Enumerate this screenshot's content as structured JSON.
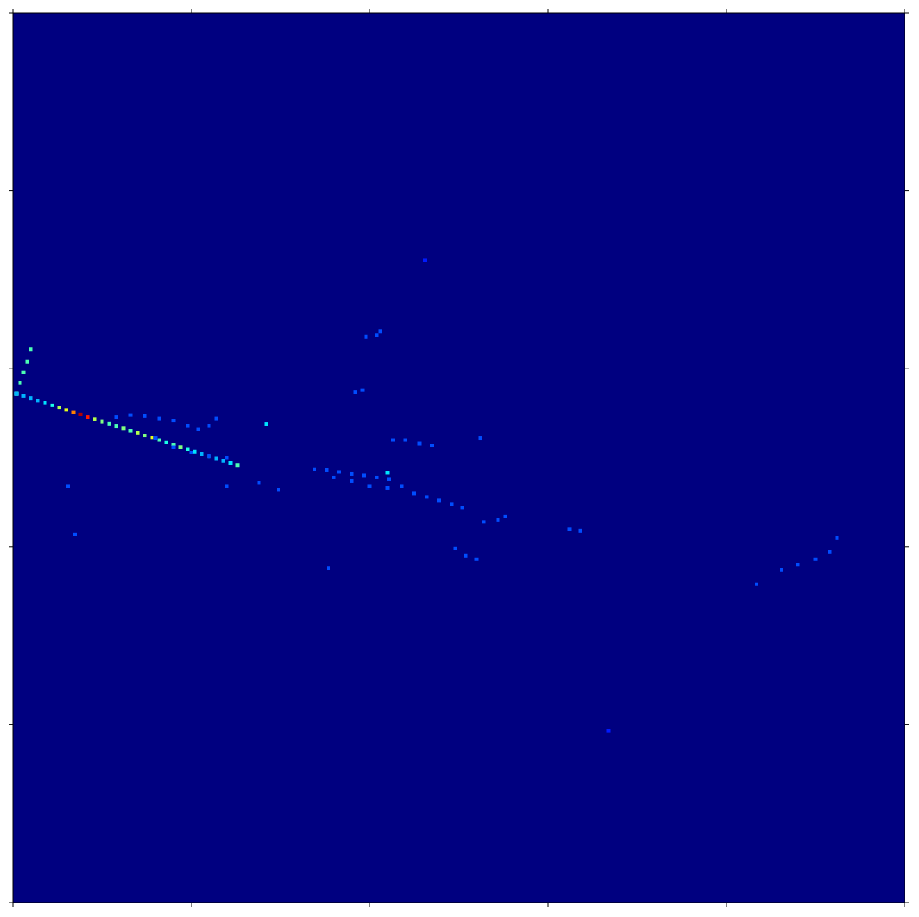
{
  "chart_data": {
    "type": "heatmap",
    "xlim": [
      0,
      500
    ],
    "ylim": [
      0,
      500
    ],
    "xticks": [
      0,
      100,
      200,
      300,
      400,
      500
    ],
    "yticks": [
      0,
      100,
      200,
      300,
      400,
      500
    ],
    "tick_labels": false,
    "grid": false,
    "color_range": [
      0,
      1
    ],
    "cells": [
      [
        2,
        286,
        0.45
      ],
      [
        4,
        292,
        0.45
      ],
      [
        6,
        298,
        0.45
      ],
      [
        8,
        304,
        0.45
      ],
      [
        10,
        311,
        0.45
      ],
      [
        2,
        286,
        0.3
      ],
      [
        6,
        284.7,
        0.3
      ],
      [
        10,
        283.4,
        0.3
      ],
      [
        14,
        282.1,
        0.3
      ],
      [
        18,
        280.8,
        0.35
      ],
      [
        22,
        279.5,
        0.4
      ],
      [
        26,
        278.2,
        0.55
      ],
      [
        30,
        276.9,
        0.6
      ],
      [
        34,
        275.6,
        0.75
      ],
      [
        38,
        274.3,
        0.95
      ],
      [
        42,
        273,
        0.85
      ],
      [
        46,
        271.7,
        0.55
      ],
      [
        50,
        270.4,
        0.5
      ],
      [
        54,
        269.1,
        0.45
      ],
      [
        58,
        267.8,
        0.45
      ],
      [
        62,
        266.5,
        0.5
      ],
      [
        66,
        265.2,
        0.45
      ],
      [
        70,
        263.9,
        0.55
      ],
      [
        74,
        262.6,
        0.5
      ],
      [
        78,
        261.3,
        0.6
      ],
      [
        82,
        260,
        0.45
      ],
      [
        86,
        258.7,
        0.4
      ],
      [
        90,
        257.4,
        0.45
      ],
      [
        94,
        256.1,
        0.5
      ],
      [
        98,
        254.8,
        0.4
      ],
      [
        102,
        253.5,
        0.35
      ],
      [
        106,
        252.2,
        0.3
      ],
      [
        110,
        250.9,
        0.3
      ],
      [
        114,
        249.6,
        0.3
      ],
      [
        118,
        248.3,
        0.3
      ],
      [
        122,
        247,
        0.35
      ],
      [
        126,
        245.7,
        0.45
      ],
      [
        58,
        273,
        0.2
      ],
      [
        66,
        274,
        0.2
      ],
      [
        74,
        273.5,
        0.2
      ],
      [
        82,
        272,
        0.2
      ],
      [
        90,
        271,
        0.2
      ],
      [
        98,
        268,
        0.2
      ],
      [
        104,
        266,
        0.2
      ],
      [
        110,
        268,
        0.2
      ],
      [
        114,
        272,
        0.2
      ],
      [
        80,
        261,
        0.2
      ],
      [
        90,
        256,
        0.2
      ],
      [
        100,
        253,
        0.2
      ],
      [
        110,
        251,
        0.2
      ],
      [
        120,
        250,
        0.2
      ],
      [
        169,
        243.5,
        0.2
      ],
      [
        176,
        243,
        0.2
      ],
      [
        183,
        242,
        0.2
      ],
      [
        190,
        241,
        0.2
      ],
      [
        197,
        240,
        0.2
      ],
      [
        204,
        239,
        0.2
      ],
      [
        211,
        238,
        0.2
      ],
      [
        218,
        234,
        0.2
      ],
      [
        225,
        230,
        0.2
      ],
      [
        232,
        228,
        0.2
      ],
      [
        239,
        226,
        0.2
      ],
      [
        246,
        224,
        0.2
      ],
      [
        252,
        222,
        0.2
      ],
      [
        180,
        239,
        0.2
      ],
      [
        190,
        237,
        0.2
      ],
      [
        200,
        234,
        0.2
      ],
      [
        210,
        233,
        0.2
      ],
      [
        210,
        241.6,
        0.35
      ],
      [
        213,
        260,
        0.2
      ],
      [
        220,
        260,
        0.2
      ],
      [
        228,
        258,
        0.2
      ],
      [
        235,
        257,
        0.2
      ],
      [
        198,
        318,
        0.2
      ],
      [
        204,
        319,
        0.2
      ],
      [
        206,
        321,
        0.2
      ],
      [
        192,
        287,
        0.2
      ],
      [
        196,
        288,
        0.2
      ],
      [
        142,
        269,
        0.35
      ],
      [
        231,
        361,
        0.15
      ],
      [
        31,
        234,
        0.2
      ],
      [
        35,
        207,
        0.2
      ],
      [
        177,
        188,
        0.2
      ],
      [
        248,
        199,
        0.2
      ],
      [
        254,
        195,
        0.2
      ],
      [
        260,
        193,
        0.2
      ],
      [
        264,
        214,
        0.2
      ],
      [
        272,
        215,
        0.2
      ],
      [
        276,
        217,
        0.2
      ],
      [
        312,
        210,
        0.2
      ],
      [
        318,
        209,
        0.2
      ],
      [
        431,
        187,
        0.2
      ],
      [
        440,
        190,
        0.2
      ],
      [
        450,
        193,
        0.2
      ],
      [
        458,
        197,
        0.2
      ],
      [
        462,
        205,
        0.2
      ],
      [
        417,
        179,
        0.2
      ],
      [
        334,
        96.5,
        0.15
      ],
      [
        262,
        261,
        0.2
      ],
      [
        138,
        236,
        0.2
      ],
      [
        120,
        234,
        0.2
      ],
      [
        149,
        232,
        0.2
      ]
    ]
  }
}
